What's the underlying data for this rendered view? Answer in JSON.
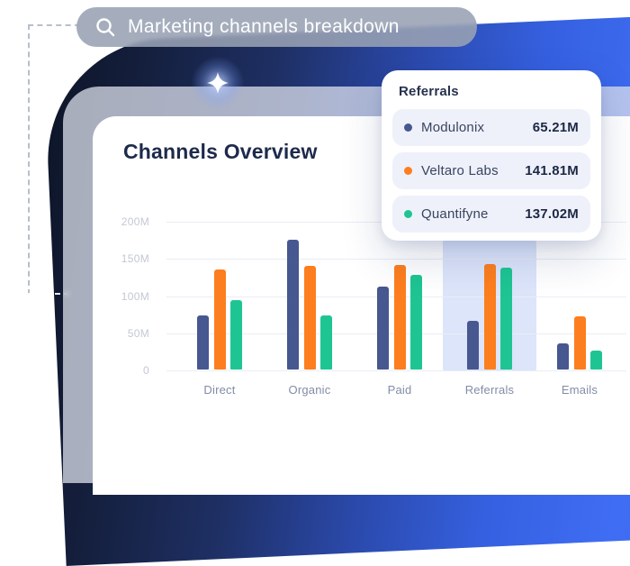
{
  "search": {
    "query": "Marketing channels breakdown"
  },
  "card": {
    "title": "Channels Overview"
  },
  "tooltip": {
    "title": "Referrals",
    "rows": [
      {
        "name": "Modulonix",
        "value": "65.21M",
        "color": "#47578f"
      },
      {
        "name": "Veltaro Labs",
        "value": "141.81M",
        "color": "#fd7e1e"
      },
      {
        "name": "Quantifyne",
        "value": "137.02M",
        "color": "#1ec592"
      }
    ]
  },
  "chart_data": {
    "type": "bar",
    "title": "Channels Overview",
    "categories": [
      "Direct",
      "Organic",
      "Paid",
      "Referrals",
      "Emails"
    ],
    "series": [
      {
        "name": "Modulonix",
        "color": "#47578f",
        "values": [
          73,
          175,
          112,
          65.21,
          35
        ]
      },
      {
        "name": "Veltaro Labs",
        "color": "#fd7e1e",
        "values": [
          134,
          139,
          141,
          141.81,
          71
        ]
      },
      {
        "name": "Quantifyne",
        "color": "#1ec592",
        "values": [
          93,
          73,
          127,
          137.02,
          25
        ]
      }
    ],
    "unit": "M",
    "ylim": [
      0,
      200
    ],
    "yticks": [
      {
        "value": 200,
        "label": "200M"
      },
      {
        "value": 150,
        "label": "150M"
      },
      {
        "value": 100,
        "label": "100M"
      },
      {
        "value": 50,
        "label": "50M"
      },
      {
        "value": 0,
        "label": "0"
      }
    ],
    "grid": "horizontal",
    "legend": "none",
    "highlighted_category": "Referrals",
    "highlight_color": "#dce5fa"
  },
  "colors": {
    "hero_blue": "#3f6df3",
    "hero_navy": "#0d1426",
    "frame_gray": "#dfe3ed",
    "title_text": "#1d2a4a",
    "axis_text": "#c2c8d4",
    "category_text": "#828ca6"
  }
}
